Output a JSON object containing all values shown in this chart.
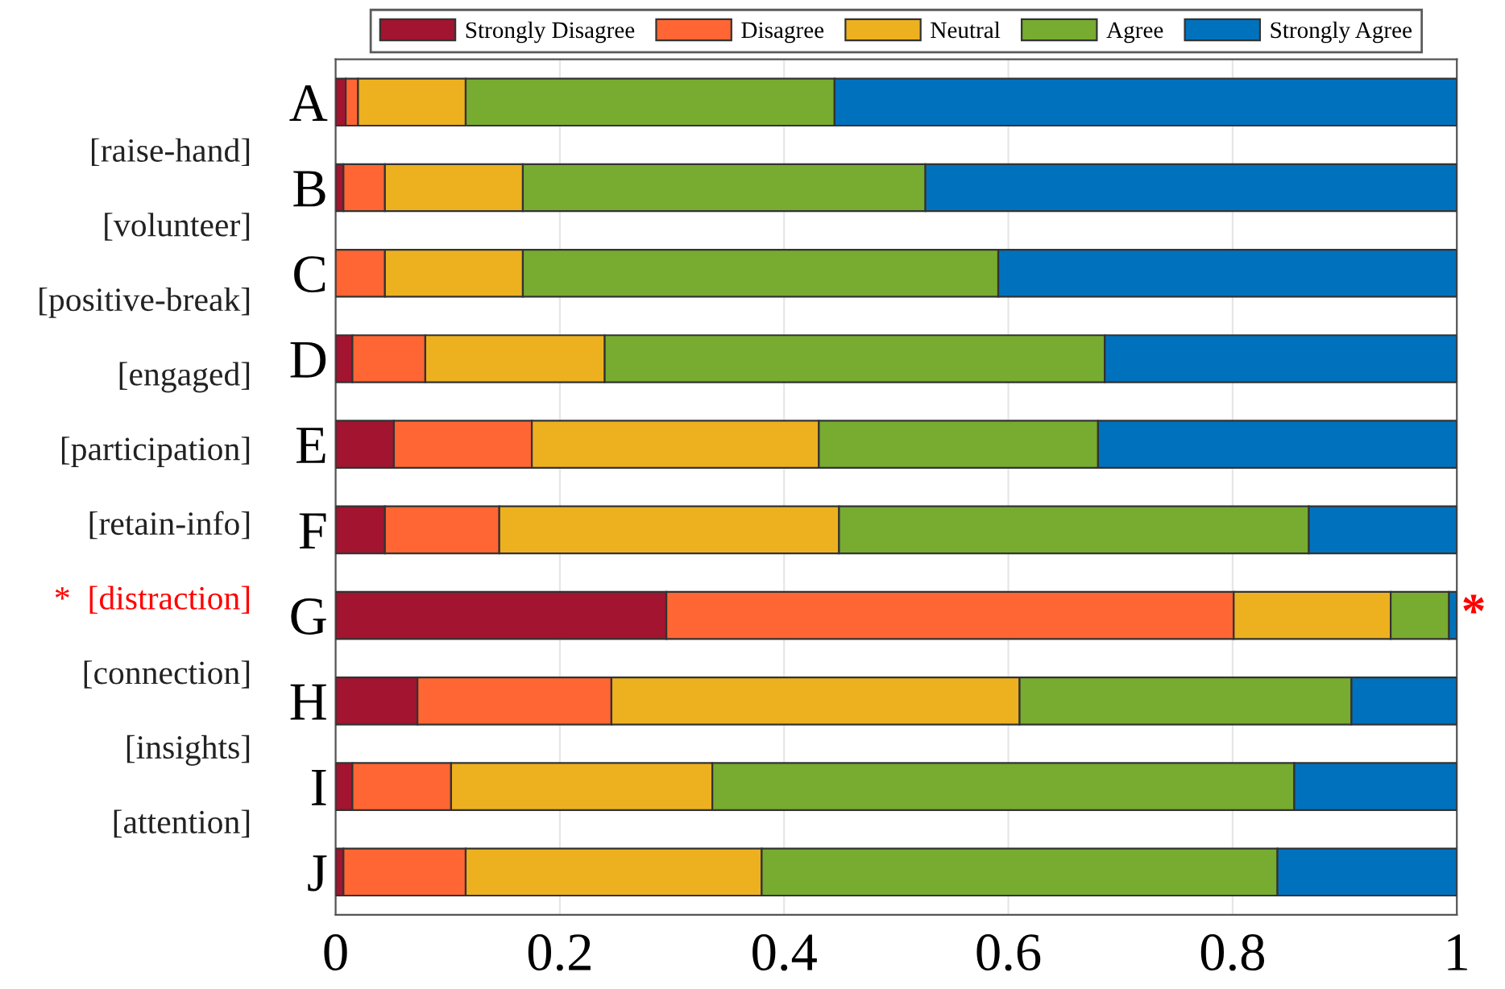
{
  "chart_data": {
    "type": "bar",
    "orientation": "horizontal",
    "stacked": true,
    "categories": [
      "A",
      "B",
      "C",
      "D",
      "E",
      "F",
      "G",
      "H",
      "I",
      "J"
    ],
    "series": [
      {
        "name": "Strongly Disagree",
        "color": "#a2142f",
        "values": [
          0.009,
          0.007,
          0,
          0.015,
          0.052,
          0.044,
          0.295,
          0.073,
          0.015,
          0.007
        ]
      },
      {
        "name": "Disagree",
        "color": "#ff6633",
        "values": [
          0.011,
          0.037,
          0.044,
          0.065,
          0.123,
          0.102,
          0.506,
          0.173,
          0.088,
          0.109
        ]
      },
      {
        "name": "Neutral",
        "color": "#edb120",
        "values": [
          0.096,
          0.123,
          0.123,
          0.16,
          0.256,
          0.303,
          0.14,
          0.364,
          0.233,
          0.264
        ]
      },
      {
        "name": "Agree",
        "color": "#77ac30",
        "values": [
          0.329,
          0.359,
          0.424,
          0.446,
          0.249,
          0.419,
          0.052,
          0.296,
          0.519,
          0.46
        ]
      },
      {
        "name": "Strongly Agree",
        "color": "#0072bd",
        "values": [
          0.555,
          0.474,
          0.409,
          0.314,
          0.32,
          0.132,
          0.007,
          0.094,
          0.145,
          0.16
        ]
      }
    ],
    "xlim": [
      0,
      1
    ],
    "xticks": [
      0,
      0.2,
      0.4,
      0.6,
      0.8,
      1
    ],
    "grid": "x",
    "legend": "top",
    "annotations": [
      "[raise-hand]",
      "[volunteer]",
      "[positive-break]",
      "[engaged]",
      "[participation]",
      "[retain-info]",
      "*  [distraction]",
      "[connection]",
      "[insights]",
      "[attention]",
      {
        "text": "*",
        "x": 1,
        "y": "G"
      }
    ]
  }
}
